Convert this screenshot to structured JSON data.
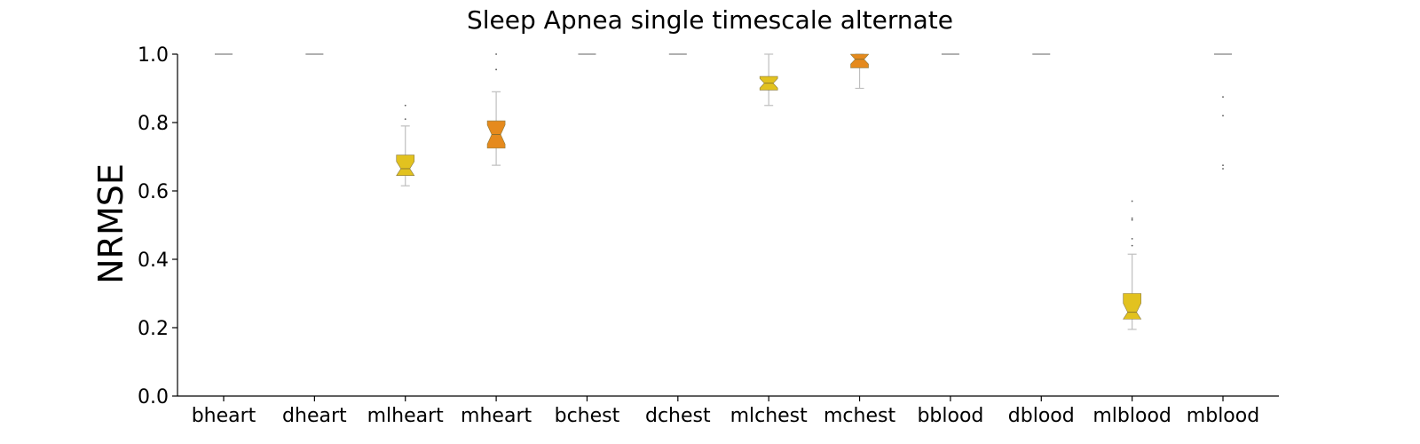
{
  "chart_data": {
    "type": "box",
    "title": "Sleep Apnea single timescale alternate",
    "xlabel": "",
    "ylabel": "NRMSE",
    "ylim": [
      0.0,
      1.0
    ],
    "yticks": [
      "0.0",
      "0.2",
      "0.4",
      "0.6",
      "0.8",
      "1.0"
    ],
    "grid": false,
    "categories": [
      "bheart",
      "dheart",
      "mlheart",
      "mheart",
      "bchest",
      "dchest",
      "mlchest",
      "mchest",
      "bblood",
      "dblood",
      "mlblood",
      "mblood"
    ],
    "boxes": [
      {
        "category": "bheart",
        "whislo": 1.0,
        "q1": 1.0,
        "med": 1.0,
        "q3": 1.0,
        "whishi": 1.0,
        "fliers": [],
        "color": "#808080"
      },
      {
        "category": "dheart",
        "whislo": 1.0,
        "q1": 1.0,
        "med": 1.0,
        "q3": 1.0,
        "whishi": 1.0,
        "fliers": [],
        "color": "#808080"
      },
      {
        "category": "mlheart",
        "whislo": 0.615,
        "q1": 0.645,
        "med": 0.665,
        "q3": 0.705,
        "whishi": 0.79,
        "fliers": [
          0.81,
          0.85
        ],
        "color": "#E2C21F"
      },
      {
        "category": "mheart",
        "whislo": 0.675,
        "q1": 0.725,
        "med": 0.765,
        "q3": 0.805,
        "whishi": 0.89,
        "fliers": [
          0.955,
          1.0
        ],
        "color": "#E58A1D"
      },
      {
        "category": "bchest",
        "whislo": 1.0,
        "q1": 1.0,
        "med": 1.0,
        "q3": 1.0,
        "whishi": 1.0,
        "fliers": [],
        "color": "#808080"
      },
      {
        "category": "dchest",
        "whislo": 1.0,
        "q1": 1.0,
        "med": 1.0,
        "q3": 1.0,
        "whishi": 1.0,
        "fliers": [],
        "color": "#808080"
      },
      {
        "category": "mlchest",
        "whislo": 0.85,
        "q1": 0.895,
        "med": 0.915,
        "q3": 0.935,
        "whishi": 1.0,
        "fliers": [],
        "color": "#E2C21F"
      },
      {
        "category": "mchest",
        "whislo": 0.9,
        "q1": 0.96,
        "med": 0.985,
        "q3": 1.0,
        "whishi": 1.0,
        "fliers": [],
        "color": "#E58A1D"
      },
      {
        "category": "bblood",
        "whislo": 1.0,
        "q1": 1.0,
        "med": 1.0,
        "q3": 1.0,
        "whishi": 1.0,
        "fliers": [],
        "color": "#808080"
      },
      {
        "category": "dblood",
        "whislo": 1.0,
        "q1": 1.0,
        "med": 1.0,
        "q3": 1.0,
        "whishi": 1.0,
        "fliers": [],
        "color": "#808080"
      },
      {
        "category": "mlblood",
        "whislo": 0.195,
        "q1": 0.225,
        "med": 0.245,
        "q3": 0.3,
        "whishi": 0.415,
        "fliers": [
          0.44,
          0.46,
          0.515,
          0.52,
          0.57
        ],
        "color": "#E2C21F"
      },
      {
        "category": "mblood",
        "whislo": 1.0,
        "q1": 1.0,
        "med": 1.0,
        "q3": 1.0,
        "whishi": 1.0,
        "fliers": [
          0.665,
          0.675,
          0.82,
          0.875
        ],
        "color": "#808080"
      }
    ]
  }
}
